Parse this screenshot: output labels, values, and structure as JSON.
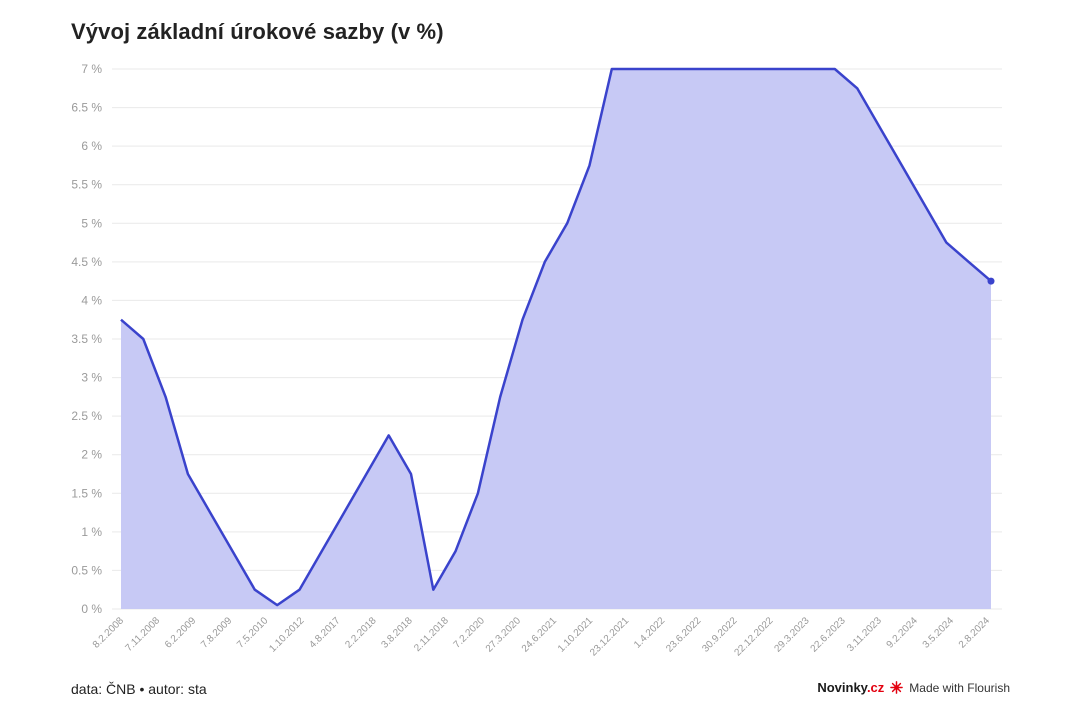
{
  "title": "Vývoj základní úrokové sazby (v %)",
  "footer": {
    "source": "data: ČNB • autor: sta",
    "brand_name": "Novinky",
    "brand_domain": ".cz",
    "flourish": "Made with Flourish"
  },
  "colors": {
    "line": "#3a43cc",
    "area": "#c7c9f5",
    "grid": "#e9e9e9",
    "brand_accent": "#e3000f"
  },
  "chart_data": {
    "type": "area",
    "title": "Vývoj základní úrokové sazby (v %)",
    "xlabel": "",
    "ylabel": "",
    "ylim": [
      0,
      7
    ],
    "y_ticks": [
      "0 %",
      "0.5 %",
      "1 %",
      "1.5 %",
      "2 %",
      "2.5 %",
      "3 %",
      "3.5 %",
      "4 %",
      "4.5 %",
      "5 %",
      "5.5 %",
      "6 %",
      "6.5 %",
      "7 %"
    ],
    "x_tick_labels": [
      "8.2.2008",
      "7.11.2008",
      "6.2.2009",
      "7.8.2009",
      "7.5.2010",
      "1.10.2012",
      "4.8.2017",
      "2.2.2018",
      "3.8.2018",
      "2.11.2018",
      "7.2.2020",
      "27.3.2020",
      "24.6.2021",
      "1.10.2021",
      "23.12.2021",
      "1.4.2022",
      "23.6.2022",
      "30.9.2022",
      "22.12.2022",
      "29.3.2023",
      "22.6.2023",
      "3.11.2023",
      "9.2.2024",
      "3.5.2024",
      "2.8.2024"
    ],
    "grid": true,
    "series": [
      {
        "values": [
          3.75,
          3.5,
          2.75,
          1.75,
          1.25,
          0.75,
          0.25,
          0.05,
          0.25,
          0.75,
          1.25,
          1.75,
          2.25,
          1.75,
          0.25,
          0.75,
          1.5,
          2.75,
          3.75,
          4.5,
          5.0,
          5.75,
          7.0,
          7.0,
          7.0,
          7.0,
          7.0,
          7.0,
          7.0,
          7.0,
          7.0,
          7.0,
          7.0,
          6.75,
          6.25,
          5.75,
          5.25,
          4.75,
          4.5,
          4.25
        ]
      }
    ]
  }
}
